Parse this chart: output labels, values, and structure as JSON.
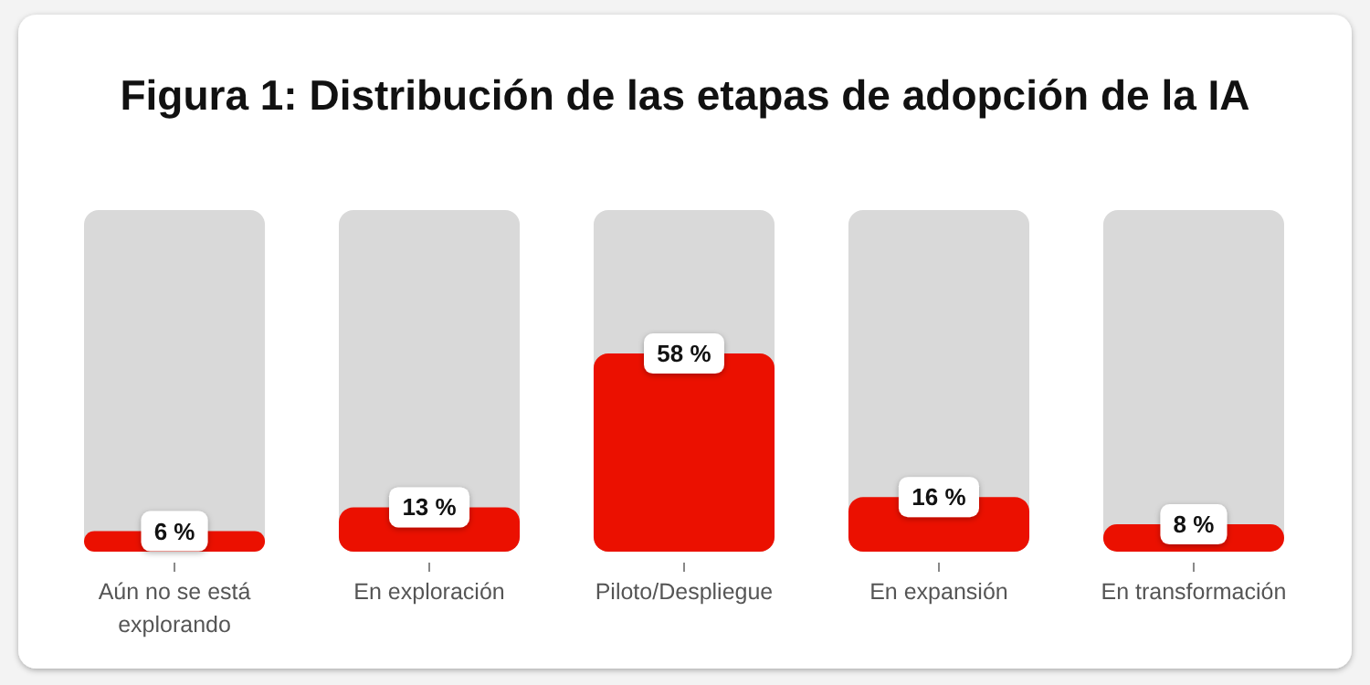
{
  "chart_data": {
    "type": "bar",
    "title": "Figura 1: Distribución de las etapas de adopción de la IA",
    "categories": [
      "Aún no se está explorando",
      "En exploración",
      "Piloto/Despliegue",
      "En expansión",
      "En transformación"
    ],
    "values": [
      6,
      13,
      58,
      16,
      8
    ],
    "color": "#eb1000",
    "value_labels": [
      "6 %",
      "13 %",
      "58 %",
      "16 %",
      "8 %"
    ],
    "ylim": [
      0,
      100
    ],
    "tick_labels": "x"
  }
}
